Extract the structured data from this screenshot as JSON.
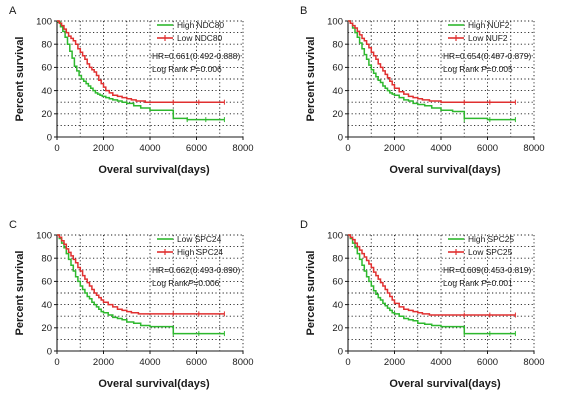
{
  "chart_data": [
    {
      "panel": "A",
      "type": "line",
      "xlabel": "Overal survival(days)",
      "ylabel": "Percent survival",
      "xlim": [
        0,
        8000
      ],
      "ylim": [
        0,
        100
      ],
      "xticks": [
        0,
        2000,
        4000,
        6000,
        8000
      ],
      "yticks": [
        0,
        20,
        40,
        60,
        80,
        100
      ],
      "grid": "dotted",
      "legend": "top-right",
      "annotations": [
        "HR=0.661(0.492-0.888)",
        "Log Rank P=0.006"
      ],
      "series": [
        {
          "name": "High NDC80",
          "color": "#2eb82e",
          "x": [
            0,
            50,
            150,
            250,
            350,
            450,
            550,
            650,
            750,
            850,
            950,
            1050,
            1150,
            1250,
            1350,
            1450,
            1550,
            1650,
            1750,
            1850,
            1950,
            2100,
            2250,
            2400,
            2600,
            2800,
            3000,
            3300,
            3600,
            4000,
            4400,
            4900,
            5000,
            5600,
            6300,
            7200
          ],
          "y": [
            100,
            99,
            95,
            91,
            86,
            80,
            74,
            68,
            61,
            57,
            53,
            50,
            48,
            46,
            44,
            42,
            40,
            38,
            37,
            36,
            35,
            34,
            33,
            32,
            31,
            30,
            29,
            27,
            25,
            23,
            23,
            23,
            16,
            15,
            15,
            15
          ]
        },
        {
          "name": "Low NDC80",
          "color": "#e03030",
          "x": [
            0,
            100,
            200,
            300,
            400,
            500,
            600,
            700,
            800,
            900,
            1000,
            1100,
            1200,
            1300,
            1400,
            1500,
            1600,
            1700,
            1800,
            1900,
            2000,
            2100,
            2250,
            2400,
            2600,
            2800,
            3000,
            3200,
            3400,
            3800,
            4400,
            5000,
            6000,
            7200
          ],
          "y": [
            100,
            98,
            96,
            93,
            90,
            87,
            85,
            83,
            80,
            76,
            73,
            70,
            67,
            63,
            60,
            58,
            56,
            53,
            49,
            46,
            43,
            40,
            38,
            36,
            35,
            34,
            33,
            32,
            31,
            30,
            30,
            30,
            30,
            30
          ]
        }
      ]
    },
    {
      "panel": "B",
      "type": "line",
      "xlabel": "Overal survival(days)",
      "ylabel": "Percent survival",
      "xlim": [
        0,
        8000
      ],
      "ylim": [
        0,
        100
      ],
      "xticks": [
        0,
        2000,
        4000,
        6000,
        8000
      ],
      "yticks": [
        0,
        20,
        40,
        60,
        80,
        100
      ],
      "grid": "dotted",
      "legend": "top-right",
      "annotations": [
        "HR=0.654(0.487-0.879)",
        "Log Rank P=0.005"
      ],
      "series": [
        {
          "name": "High NUF2",
          "color": "#2eb82e",
          "x": [
            0,
            100,
            200,
            300,
            400,
            500,
            600,
            700,
            800,
            900,
            1000,
            1100,
            1200,
            1300,
            1400,
            1500,
            1600,
            1700,
            1800,
            1900,
            2000,
            2200,
            2400,
            2600,
            2800,
            3000,
            3300,
            3600,
            4000,
            4500,
            4900,
            5000,
            6000,
            7200
          ],
          "y": [
            100,
            98,
            94,
            90,
            86,
            81,
            76,
            71,
            67,
            62,
            58,
            55,
            52,
            49,
            47,
            44,
            42,
            40,
            38,
            37,
            36,
            34,
            32,
            31,
            29,
            28,
            27,
            25,
            23,
            22,
            22,
            16,
            15,
            15
          ]
        },
        {
          "name": "Low NUF2",
          "color": "#e03030",
          "x": [
            0,
            100,
            200,
            300,
            400,
            500,
            600,
            700,
            800,
            900,
            1000,
            1100,
            1200,
            1300,
            1400,
            1500,
            1600,
            1700,
            1800,
            1900,
            2000,
            2200,
            2400,
            2600,
            2800,
            3000,
            3200,
            3500,
            4000,
            5000,
            6000,
            7200
          ],
          "y": [
            100,
            98,
            96,
            94,
            91,
            88,
            85,
            83,
            80,
            77,
            73,
            70,
            67,
            63,
            60,
            57,
            54,
            51,
            48,
            45,
            42,
            39,
            37,
            35,
            34,
            33,
            32,
            31,
            30,
            30,
            30,
            30
          ]
        }
      ]
    },
    {
      "panel": "C",
      "type": "line",
      "xlabel": "Overal survival(days)",
      "ylabel": "Percent survival",
      "xlim": [
        0,
        8000
      ],
      "ylim": [
        0,
        100
      ],
      "xticks": [
        0,
        2000,
        4000,
        6000,
        8000
      ],
      "yticks": [
        0,
        20,
        40,
        60,
        80,
        100
      ],
      "grid": "dotted",
      "legend": "top-right",
      "annotations": [
        "HR=0.662(0.493-0.890)",
        "Log RankP=0.006"
      ],
      "series": [
        {
          "name": "Low SPC24",
          "color": "#2eb82e",
          "x": [
            0,
            100,
            200,
            300,
            400,
            500,
            600,
            700,
            800,
            900,
            1000,
            1100,
            1200,
            1300,
            1400,
            1500,
            1600,
            1700,
            1800,
            1900,
            2000,
            2200,
            2400,
            2600,
            2800,
            3000,
            3300,
            3600,
            4000,
            4600,
            4900,
            5000,
            6000,
            7200
          ],
          "y": [
            100,
            97,
            93,
            89,
            84,
            79,
            74,
            69,
            64,
            60,
            56,
            53,
            50,
            47,
            45,
            42,
            40,
            38,
            36,
            34,
            33,
            31,
            29,
            28,
            27,
            25,
            24,
            22,
            21,
            21,
            21,
            15,
            15,
            15
          ]
        },
        {
          "name": "High SPC24",
          "color": "#e03030",
          "x": [
            0,
            100,
            200,
            300,
            400,
            500,
            600,
            700,
            800,
            900,
            1000,
            1100,
            1200,
            1300,
            1400,
            1500,
            1600,
            1700,
            1800,
            1900,
            2000,
            2200,
            2400,
            2600,
            2800,
            3000,
            3200,
            3500,
            4000,
            5000,
            6000,
            7200
          ],
          "y": [
            100,
            98,
            95,
            92,
            88,
            85,
            82,
            79,
            76,
            72,
            69,
            65,
            62,
            59,
            56,
            53,
            50,
            48,
            46,
            44,
            42,
            40,
            38,
            36,
            35,
            34,
            33,
            32,
            32,
            32,
            32,
            32
          ]
        }
      ]
    },
    {
      "panel": "D",
      "type": "line",
      "xlabel": "Overal survival(days)",
      "ylabel": "Percent survival",
      "xlim": [
        0,
        8000
      ],
      "ylim": [
        0,
        100
      ],
      "xticks": [
        0,
        2000,
        4000,
        6000,
        8000
      ],
      "yticks": [
        0,
        20,
        40,
        60,
        80,
        100
      ],
      "grid": "dotted",
      "legend": "top-right",
      "annotations": [
        "HR=0.609(0.453-0.819)",
        "Log Rank P=0.001"
      ],
      "series": [
        {
          "name": "High SPC25",
          "color": "#2eb82e",
          "x": [
            0,
            100,
            200,
            300,
            400,
            500,
            600,
            700,
            800,
            900,
            1000,
            1100,
            1200,
            1300,
            1400,
            1500,
            1600,
            1700,
            1800,
            1900,
            2000,
            2200,
            2400,
            2600,
            2800,
            3000,
            3300,
            3600,
            4000,
            4600,
            4900,
            5000,
            6000,
            7200
          ],
          "y": [
            100,
            97,
            93,
            89,
            84,
            79,
            74,
            69,
            64,
            60,
            56,
            52,
            49,
            46,
            44,
            41,
            39,
            37,
            35,
            33,
            32,
            30,
            28,
            27,
            26,
            24,
            23,
            22,
            21,
            21,
            21,
            15,
            15,
            15
          ]
        },
        {
          "name": "Low SPC25",
          "color": "#e03030",
          "x": [
            0,
            100,
            200,
            300,
            400,
            500,
            600,
            700,
            800,
            900,
            1000,
            1100,
            1200,
            1300,
            1400,
            1500,
            1600,
            1700,
            1800,
            1900,
            2000,
            2200,
            2400,
            2600,
            2800,
            3000,
            3200,
            3500,
            4000,
            5000,
            6000,
            7200
          ],
          "y": [
            100,
            98,
            96,
            93,
            90,
            87,
            84,
            81,
            78,
            75,
            72,
            68,
            65,
            62,
            59,
            56,
            53,
            50,
            47,
            44,
            41,
            38,
            36,
            35,
            34,
            33,
            32,
            31,
            31,
            31,
            31,
            31
          ]
        }
      ]
    }
  ]
}
